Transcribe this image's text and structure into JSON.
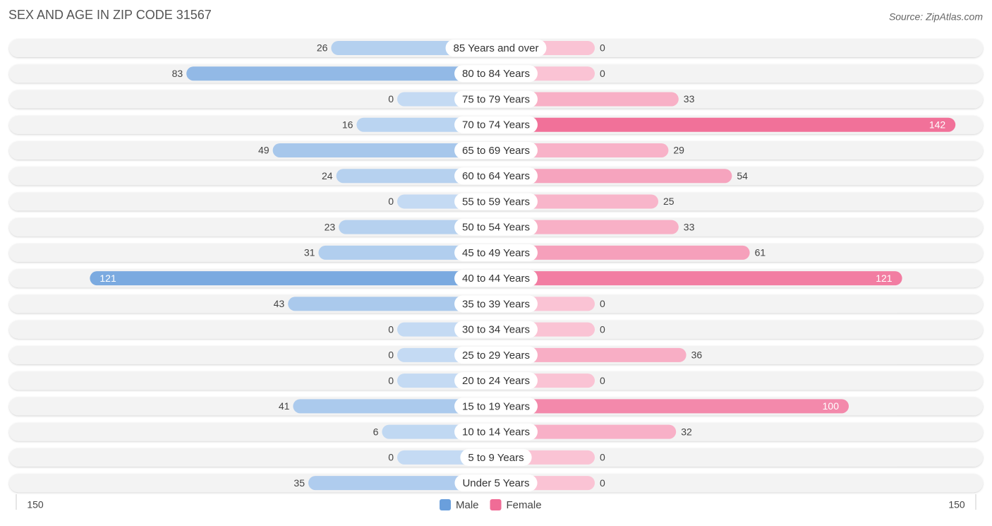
{
  "chart_data": {
    "type": "pyramid",
    "title": "SEX AND AGE IN ZIP CODE 31567",
    "source": "Source: ZipAtlas.com",
    "categories": [
      "85 Years and over",
      "80 to 84 Years",
      "75 to 79 Years",
      "70 to 74 Years",
      "65 to 69 Years",
      "60 to 64 Years",
      "55 to 59 Years",
      "50 to 54 Years",
      "45 to 49 Years",
      "40 to 44 Years",
      "35 to 39 Years",
      "30 to 34 Years",
      "25 to 29 Years",
      "20 to 24 Years",
      "15 to 19 Years",
      "10 to 14 Years",
      "5 to 9 Years",
      "Under 5 Years"
    ],
    "series": [
      {
        "name": "Male",
        "color": "#6a9fdc",
        "values": [
          26,
          83,
          0,
          16,
          49,
          24,
          0,
          23,
          31,
          121,
          43,
          0,
          0,
          0,
          41,
          6,
          0,
          35
        ]
      },
      {
        "name": "Female",
        "color": "#f06c96",
        "values": [
          0,
          0,
          33,
          142,
          29,
          54,
          25,
          33,
          61,
          121,
          0,
          0,
          36,
          0,
          100,
          32,
          0,
          0
        ]
      }
    ],
    "xlim": [
      0,
      150
    ],
    "xticks": [
      150
    ]
  }
}
